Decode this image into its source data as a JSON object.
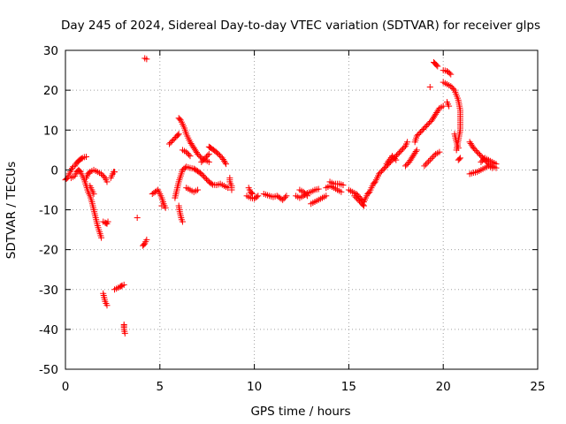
{
  "chart_data": {
    "type": "scatter",
    "title": "Day 245 of 2024, Sidereal Day-to-day VTEC variation (SDTVAR) for receiver glps",
    "xlabel": "GPS time / hours",
    "ylabel": "SDTVAR / TECUs",
    "xlim": [
      0,
      25
    ],
    "ylim": [
      -50,
      30
    ],
    "xticks": [
      0,
      5,
      10,
      15,
      20,
      25
    ],
    "yticks": [
      -50,
      -40,
      -30,
      -20,
      -10,
      0,
      10,
      20,
      30
    ],
    "grid": true,
    "marker": "+",
    "colors": {
      "series": "#ff0000",
      "axes": "#000000",
      "grid": "#a0a0a0"
    },
    "series": [
      {
        "name": "SDTVAR",
        "segments": [
          [
            [
              0.0,
              -2.5
            ],
            [
              0.1,
              -2.0
            ],
            [
              0.2,
              -1.0
            ],
            [
              0.3,
              0.0
            ],
            [
              0.4,
              0.8
            ],
            [
              0.5,
              1.0
            ],
            [
              0.6,
              1.8
            ],
            [
              0.7,
              2.3
            ],
            [
              0.8,
              2.7
            ],
            [
              0.9,
              3.0
            ],
            [
              1.0,
              3.2
            ],
            [
              1.1,
              3.3
            ]
          ],
          [
            [
              0.3,
              -2.0
            ],
            [
              0.5,
              -1.5
            ],
            [
              0.6,
              -0.5
            ],
            [
              0.7,
              0.0
            ],
            [
              0.8,
              -0.5
            ],
            [
              0.9,
              -1.5
            ],
            [
              1.0,
              -2.5
            ],
            [
              1.1,
              -4.0
            ],
            [
              1.2,
              -5.5
            ],
            [
              1.3,
              -6.5
            ],
            [
              1.4,
              -8.0
            ],
            [
              1.5,
              -10.0
            ],
            [
              1.6,
              -12.0
            ],
            [
              1.7,
              -14.0
            ],
            [
              1.8,
              -15.5
            ],
            [
              1.9,
              -17.0
            ]
          ],
          [
            [
              1.1,
              -2.0
            ],
            [
              1.2,
              -1.0
            ],
            [
              1.3,
              -0.5
            ],
            [
              1.5,
              0.0
            ],
            [
              1.7,
              -0.5
            ],
            [
              1.9,
              -1.0
            ],
            [
              2.1,
              -2.0
            ],
            [
              2.2,
              -3.0
            ]
          ],
          [
            [
              1.3,
              -4.0
            ],
            [
              1.4,
              -5.0
            ],
            [
              1.5,
              -6.0
            ]
          ],
          [
            [
              2.0,
              -13.0
            ],
            [
              2.1,
              -13.2
            ],
            [
              2.2,
              -13.5
            ],
            [
              2.25,
              -13.0
            ]
          ],
          [
            [
              2.4,
              -2.0
            ],
            [
              2.45,
              -1.5
            ],
            [
              2.5,
              -1.0
            ],
            [
              2.55,
              -0.5
            ],
            [
              2.6,
              -0.5
            ]
          ],
          [
            [
              2.0,
              -31.0
            ],
            [
              2.05,
              -32.0
            ],
            [
              2.1,
              -33.0
            ],
            [
              2.15,
              -33.5
            ],
            [
              2.2,
              -34.0
            ]
          ],
          [
            [
              2.6,
              -30.0
            ],
            [
              2.9,
              -29.3
            ],
            [
              3.0,
              -29.0
            ],
            [
              3.1,
              -28.8
            ]
          ],
          [
            [
              3.1,
              -38.8
            ],
            [
              3.1,
              -39.5
            ],
            [
              3.1,
              -40.0
            ],
            [
              3.15,
              -41.0
            ]
          ],
          [
            [
              3.8,
              -12.0
            ]
          ],
          [
            [
              4.1,
              -19.0
            ],
            [
              4.2,
              -18.5
            ],
            [
              4.25,
              -18.0
            ],
            [
              4.3,
              -17.5
            ]
          ],
          [
            [
              4.2,
              28.0
            ],
            [
              4.3,
              27.8
            ]
          ],
          [
            [
              4.6,
              -6.0
            ],
            [
              4.9,
              -5.0
            ],
            [
              5.0,
              -6.0
            ],
            [
              5.1,
              -7.0
            ],
            [
              5.2,
              -8.5
            ],
            [
              5.3,
              -9.5
            ]
          ],
          [
            [
              5.1,
              -9.0
            ],
            [
              5.2,
              -9.0
            ]
          ],
          [
            [
              5.5,
              6.5
            ],
            [
              5.7,
              7.5
            ],
            [
              5.9,
              8.5
            ],
            [
              6.0,
              9.0
            ]
          ],
          [
            [
              5.8,
              -7.0
            ],
            [
              5.9,
              -5.0
            ],
            [
              6.0,
              -3.0
            ],
            [
              6.1,
              -1.5
            ],
            [
              6.2,
              0.0
            ],
            [
              6.4,
              0.8
            ],
            [
              6.6,
              0.5
            ],
            [
              6.8,
              0.3
            ],
            [
              7.0,
              -0.3
            ],
            [
              7.2,
              -1.0
            ],
            [
              7.4,
              -2.0
            ],
            [
              7.6,
              -3.0
            ],
            [
              7.8,
              -3.7
            ],
            [
              8.0,
              -3.8
            ],
            [
              8.2,
              -3.5
            ],
            [
              8.4,
              -4.0
            ],
            [
              8.6,
              -4.5
            ]
          ],
          [
            [
              6.0,
              -9.0
            ],
            [
              6.05,
              -10.5
            ],
            [
              6.1,
              -11.5
            ],
            [
              6.15,
              -12.5
            ],
            [
              6.2,
              -13.0
            ]
          ],
          [
            [
              6.0,
              13.0
            ],
            [
              6.1,
              12.5
            ],
            [
              6.2,
              11.5
            ],
            [
              6.3,
              10.5
            ],
            [
              6.4,
              9.0
            ],
            [
              6.5,
              8.0
            ],
            [
              6.6,
              7.0
            ],
            [
              6.8,
              5.5
            ],
            [
              7.0,
              4.0
            ],
            [
              7.2,
              3.0
            ],
            [
              7.4,
              2.5
            ],
            [
              7.6,
              2.0
            ]
          ],
          [
            [
              6.2,
              5.0
            ],
            [
              6.4,
              4.5
            ],
            [
              6.6,
              3.5
            ]
          ],
          [
            [
              6.4,
              -4.5
            ],
            [
              6.6,
              -5.0
            ],
            [
              6.8,
              -5.5
            ],
            [
              7.0,
              -5.0
            ]
          ],
          [
            [
              7.2,
              2.0
            ],
            [
              7.4,
              3.0
            ],
            [
              7.6,
              4.0
            ]
          ],
          [
            [
              7.6,
              5.8
            ],
            [
              7.7,
              5.5
            ],
            [
              7.9,
              4.8
            ],
            [
              8.1,
              4.0
            ],
            [
              8.3,
              3.0
            ],
            [
              8.5,
              1.5
            ]
          ],
          [
            [
              8.7,
              -2.0
            ],
            [
              8.7,
              -3.0
            ],
            [
              8.8,
              -4.0
            ],
            [
              8.8,
              -5.0
            ]
          ],
          [
            [
              9.6,
              -6.5
            ],
            [
              9.8,
              -7.0
            ],
            [
              10.0,
              -7.2
            ],
            [
              10.2,
              -6.5
            ]
          ],
          [
            [
              9.7,
              -4.5
            ],
            [
              9.8,
              -5.5
            ],
            [
              9.9,
              -6.0
            ]
          ],
          [
            [
              10.5,
              -6.0
            ],
            [
              10.8,
              -6.5
            ],
            [
              11.0,
              -6.8
            ],
            [
              11.2,
              -6.5
            ],
            [
              11.5,
              -7.5
            ],
            [
              11.7,
              -6.5
            ]
          ],
          [
            [
              12.2,
              -6.5
            ],
            [
              12.4,
              -7.0
            ],
            [
              12.6,
              -6.5
            ],
            [
              12.8,
              -5.8
            ],
            [
              13.0,
              -5.5
            ],
            [
              13.2,
              -5.0
            ],
            [
              13.4,
              -4.8
            ]
          ],
          [
            [
              12.4,
              -5.0
            ],
            [
              12.6,
              -5.5
            ],
            [
              12.8,
              -6.5
            ]
          ],
          [
            [
              13.0,
              -8.5
            ],
            [
              13.2,
              -8.0
            ],
            [
              13.4,
              -7.5
            ],
            [
              13.6,
              -7.0
            ],
            [
              13.8,
              -6.5
            ]
          ],
          [
            [
              13.8,
              -4.5
            ],
            [
              14.0,
              -4.0
            ],
            [
              14.2,
              -4.5
            ],
            [
              14.4,
              -5.0
            ],
            [
              14.6,
              -5.5
            ]
          ],
          [
            [
              14.0,
              -3.0
            ],
            [
              14.2,
              -3.5
            ],
            [
              14.5,
              -3.5
            ],
            [
              14.7,
              -3.8
            ]
          ],
          [
            [
              15.0,
              -5.0
            ],
            [
              15.2,
              -5.5
            ],
            [
              15.4,
              -6.0
            ],
            [
              15.6,
              -7.0
            ],
            [
              15.8,
              -8.0
            ],
            [
              15.9,
              -7.0
            ],
            [
              16.0,
              -6.0
            ],
            [
              16.1,
              -5.5
            ],
            [
              16.2,
              -4.5
            ],
            [
              16.3,
              -3.5
            ],
            [
              16.4,
              -3.0
            ],
            [
              16.5,
              -2.0
            ],
            [
              16.6,
              -1.0
            ],
            [
              16.8,
              0.0
            ],
            [
              17.0,
              1.0
            ],
            [
              17.2,
              2.0
            ],
            [
              17.4,
              3.0
            ],
            [
              17.6,
              4.0
            ],
            [
              17.8,
              5.0
            ],
            [
              18.0,
              6.0
            ],
            [
              18.1,
              7.0
            ]
          ],
          [
            [
              15.3,
              -6.5
            ],
            [
              15.5,
              -7.5
            ],
            [
              15.7,
              -8.5
            ],
            [
              15.8,
              -9.0
            ]
          ],
          [
            [
              17.0,
              1.5
            ],
            [
              17.3,
              3.5
            ],
            [
              17.5,
              2.5
            ]
          ],
          [
            [
              18.0,
              1.0
            ],
            [
              18.2,
              2.0
            ],
            [
              18.4,
              3.5
            ],
            [
              18.6,
              5.0
            ]
          ],
          [
            [
              18.5,
              7.0
            ],
            [
              18.6,
              8.5
            ],
            [
              18.8,
              9.5
            ],
            [
              19.0,
              10.5
            ],
            [
              19.2,
              11.5
            ],
            [
              19.4,
              12.5
            ],
            [
              19.6,
              14.0
            ],
            [
              19.8,
              15.5
            ],
            [
              20.0,
              16.0
            ]
          ],
          [
            [
              19.0,
              1.0
            ],
            [
              19.3,
              2.5
            ],
            [
              19.6,
              4.0
            ],
            [
              19.8,
              4.5
            ]
          ],
          [
            [
              19.5,
              27.0
            ],
            [
              19.6,
              26.5
            ],
            [
              19.7,
              26.0
            ]
          ],
          [
            [
              19.3,
              20.8
            ]
          ],
          [
            [
              20.0,
              25.0
            ],
            [
              20.2,
              24.8
            ],
            [
              20.4,
              24.0
            ]
          ],
          [
            [
              20.0,
              22.0
            ],
            [
              20.2,
              21.5
            ],
            [
              20.4,
              21.0
            ],
            [
              20.6,
              20.0
            ],
            [
              20.8,
              17.5
            ],
            [
              20.9,
              15.0
            ],
            [
              20.9,
              12.5
            ],
            [
              20.9,
              10.0
            ],
            [
              20.8,
              7.5
            ],
            [
              20.7,
              5.0
            ]
          ],
          [
            [
              20.2,
              17.0
            ],
            [
              20.3,
              16.0
            ]
          ],
          [
            [
              20.6,
              9.0
            ],
            [
              20.7,
              7.0
            ],
            [
              20.8,
              5.5
            ]
          ],
          [
            [
              20.8,
              2.5
            ],
            [
              20.9,
              3.0
            ]
          ],
          [
            [
              21.4,
              7.0
            ],
            [
              21.6,
              5.5
            ],
            [
              21.8,
              4.5
            ],
            [
              22.0,
              3.5
            ],
            [
              22.2,
              2.5
            ],
            [
              22.4,
              1.5
            ],
            [
              22.6,
              1.0
            ],
            [
              22.8,
              0.5
            ]
          ],
          [
            [
              21.4,
              -1.0
            ],
            [
              21.6,
              -0.7
            ],
            [
              21.8,
              -0.5
            ],
            [
              22.0,
              0.0
            ],
            [
              22.2,
              0.5
            ],
            [
              22.4,
              1.0
            ],
            [
              22.6,
              0.5
            ]
          ],
          [
            [
              22.0,
              2.0
            ],
            [
              22.2,
              3.0
            ],
            [
              22.4,
              2.5
            ],
            [
              22.6,
              2.0
            ],
            [
              22.8,
              1.5
            ]
          ]
        ]
      }
    ]
  }
}
